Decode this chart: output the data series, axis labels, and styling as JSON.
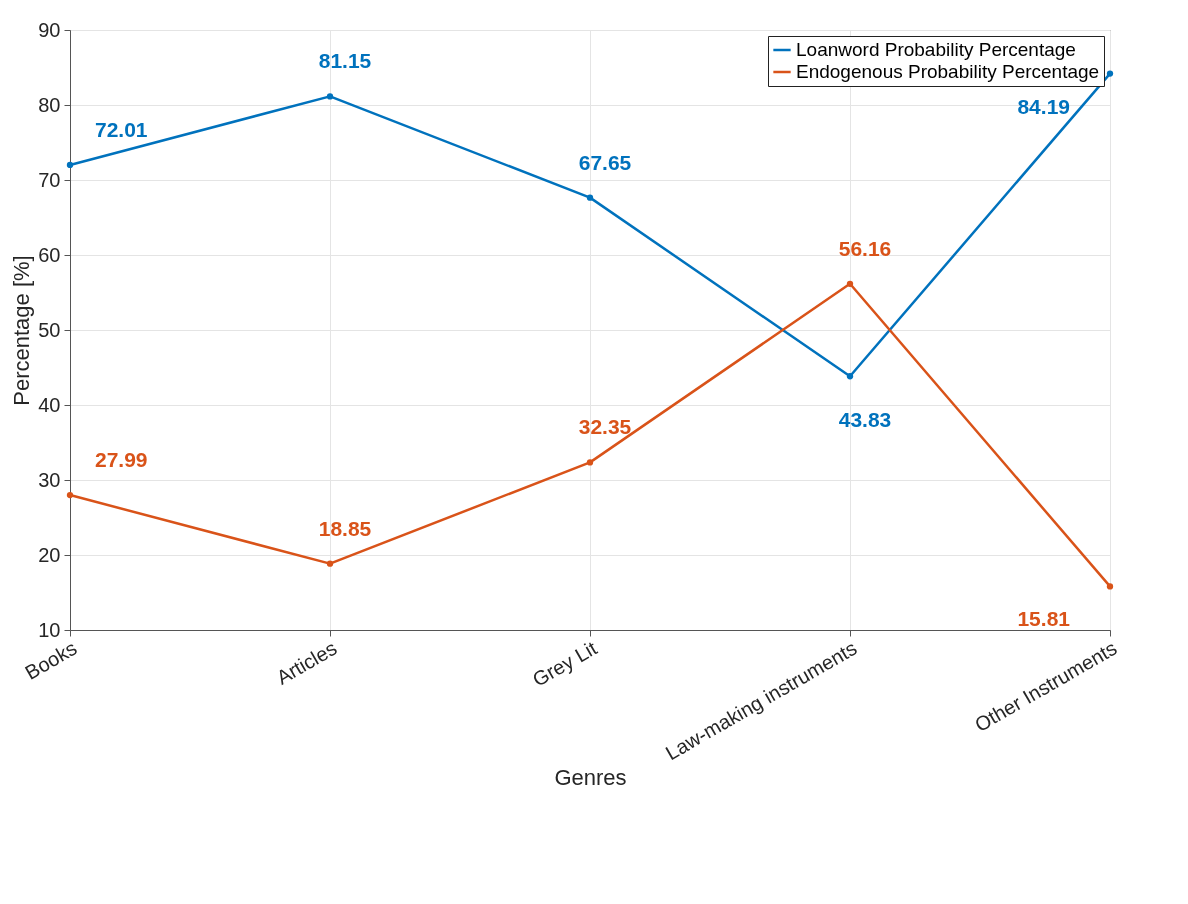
{
  "chart_data": {
    "type": "line",
    "xlabel": "Genres",
    "ylabel": "Percentage [%]",
    "categories": [
      "Books",
      "Articles",
      "Grey Lit",
      "Law-making instruments",
      "Other Instruments"
    ],
    "series": [
      {
        "name": "Loanword Probability Percentage",
        "color": "#0072bd",
        "values": [
          72.01,
          81.15,
          67.65,
          43.83,
          84.19
        ]
      },
      {
        "name": "Endogenous Probability Percentage",
        "color": "#d95319",
        "values": [
          27.99,
          18.85,
          32.35,
          56.16,
          15.81
        ]
      }
    ],
    "ylim": [
      10,
      90
    ],
    "yticks": [
      10,
      20,
      30,
      40,
      50,
      60,
      70,
      80,
      90
    ],
    "grid": true,
    "legend": "top right",
    "marker": "circle",
    "line_style": "solid",
    "data_labels": true
  }
}
